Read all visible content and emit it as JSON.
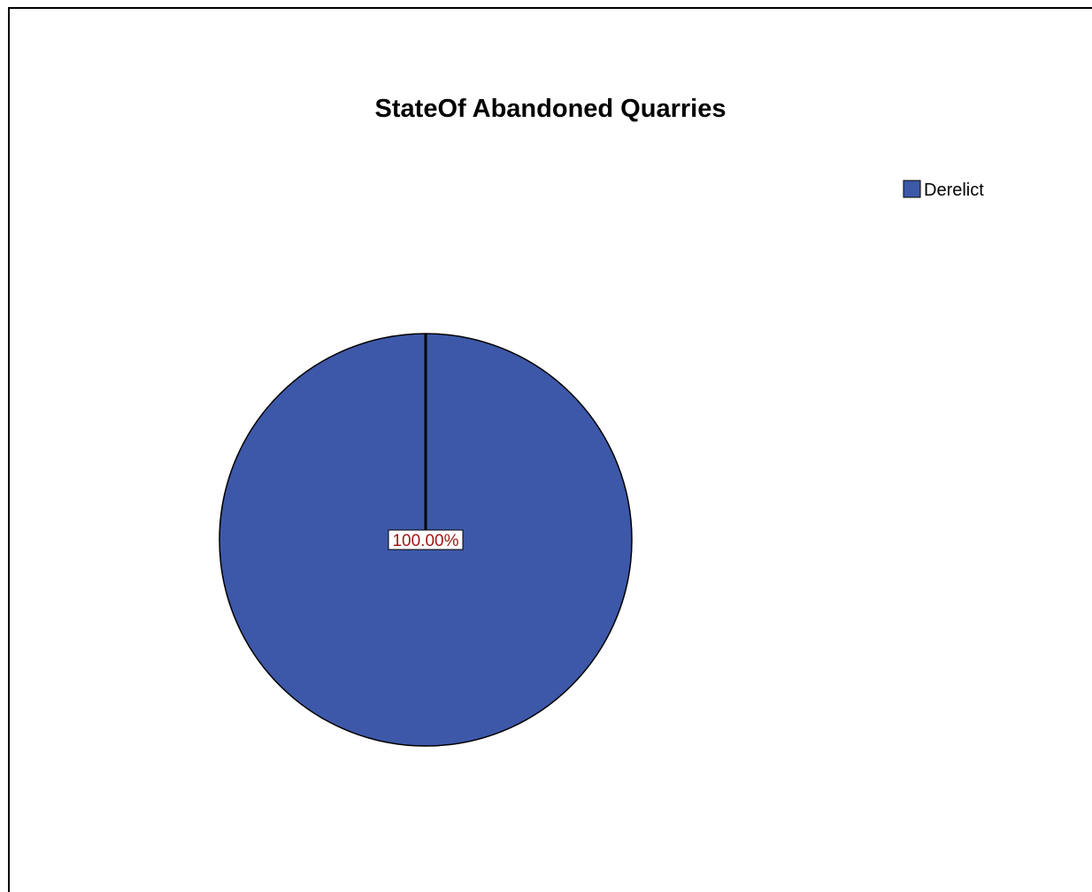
{
  "chart_data": {
    "type": "pie",
    "title": "StateOf Abandoned Quarries",
    "slices": [
      {
        "label": "Derelict",
        "value": 100.0,
        "display": "100.00%",
        "color": "#3D58A8"
      }
    ],
    "legend": {
      "position": "top-right",
      "entries": [
        "Derelict"
      ]
    },
    "label_color": "#A01818"
  }
}
